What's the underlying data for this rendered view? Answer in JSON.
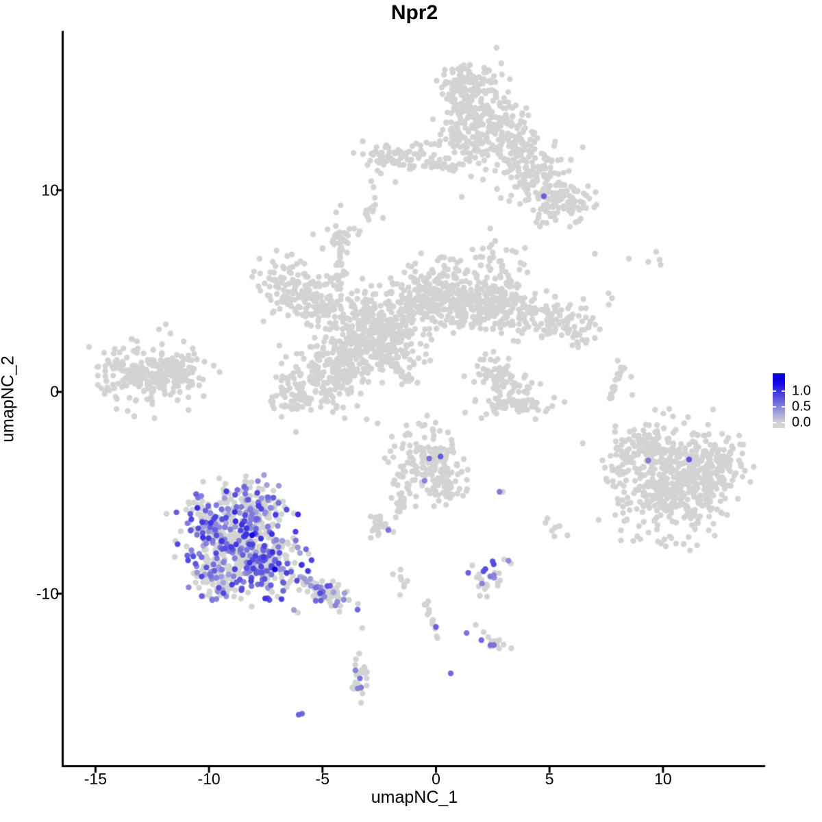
{
  "title": "Npr2",
  "axes": {
    "x": {
      "label": "umapNC_1",
      "tick_labels": [
        "-15",
        "-10",
        "-5",
        "0",
        "5",
        "10"
      ],
      "tick_values": [
        -15,
        -10,
        -5,
        0,
        5,
        10
      ],
      "range": [
        -16.4,
        14.5
      ]
    },
    "y": {
      "label": "umapNC_2",
      "tick_labels": [
        "10",
        "0",
        "-10"
      ],
      "tick_values": [
        10,
        0,
        -10
      ],
      "range": [
        -18.5,
        17.9
      ]
    }
  },
  "legend": {
    "tick_labels": [
      "1.0",
      "0.5",
      "0.0"
    ],
    "tick_values": [
      1.0,
      0.5,
      0.0
    ],
    "bar_value_range": [
      -0.18,
      1.57
    ],
    "low_color": "#d3d3d3",
    "high_color": "#0d00e6"
  },
  "colors": {
    "point_grey": "#d3d3d3",
    "background": "#ffffff",
    "axis": "#000000",
    "text": "#000000"
  },
  "chart_data": {
    "type": "scatter",
    "title": "Npr2",
    "xlabel": "umapNC_1",
    "ylabel": "umapNC_2",
    "xlim": [
      -16.4,
      14.5
    ],
    "ylim": [
      -18.5,
      17.9
    ],
    "grid": false,
    "legend_position": "right",
    "seed": 42,
    "point_radius_px": 4.2,
    "value_max": 1.3,
    "clusters": [
      {
        "id": "top-main",
        "cx": 1.7,
        "cy": 13.6,
        "sx": 0.85,
        "sy": 1.2,
        "n": 260
      },
      {
        "id": "top-tip",
        "cx": 1.2,
        "cy": 15.3,
        "sx": 0.55,
        "sy": 0.45,
        "n": 60
      },
      {
        "id": "top-right-upper",
        "cx": 3.3,
        "cy": 12.4,
        "sx": 0.55,
        "sy": 0.8,
        "n": 80
      },
      {
        "id": "top-wing-mid",
        "cx": 4.3,
        "cy": 10.8,
        "sx": 0.8,
        "sy": 0.8,
        "n": 130
      },
      {
        "id": "top-wing-low",
        "cx": 5.5,
        "cy": 9.4,
        "sx": 0.7,
        "sy": 0.55,
        "n": 90
      },
      {
        "id": "top-left-band",
        "cx": -1.7,
        "cy": 11.6,
        "sx": 0.85,
        "sy": 0.38,
        "n": 85
      },
      {
        "id": "top-band-chain",
        "shape": "streak",
        "x1": -0.6,
        "y1": 11.3,
        "x2": 0.9,
        "y2": 11.2,
        "jitter": 0.12,
        "n": 22
      },
      {
        "id": "top-small-blob",
        "cx": -2.8,
        "cy": 8.8,
        "sx": 0.22,
        "sy": 0.35,
        "n": 12
      },
      {
        "id": "arm-upper",
        "cx": 2.6,
        "cy": 5.6,
        "sx": 0.7,
        "sy": 0.95,
        "n": 90
      },
      {
        "id": "arm-lower",
        "cx": 2.0,
        "cy": 4.4,
        "sx": 0.5,
        "sy": 0.5,
        "n": 60
      },
      {
        "id": "nw-arm",
        "cx": -6.3,
        "cy": 5.3,
        "sx": 0.85,
        "sy": 0.65,
        "n": 110
      },
      {
        "id": "nw-arm-low",
        "cx": -5.1,
        "cy": 4.2,
        "sx": 0.6,
        "sy": 0.5,
        "n": 70
      },
      {
        "id": "chain-vert",
        "shape": "streak",
        "x1": -4.35,
        "y1": 7.3,
        "x2": -4.15,
        "y2": 5.3,
        "jitter": 0.12,
        "n": 20
      },
      {
        "id": "chain-top-blob",
        "cx": -4.3,
        "cy": 7.6,
        "sx": 0.45,
        "sy": 0.4,
        "n": 35
      },
      {
        "id": "center-west",
        "cx": -3.2,
        "cy": 3.4,
        "sx": 0.75,
        "sy": 0.8,
        "n": 160
      },
      {
        "id": "center-core",
        "cx": -1.8,
        "cy": 2.8,
        "sx": 0.8,
        "sy": 0.85,
        "n": 180
      },
      {
        "id": "north-arm",
        "cx": -0.8,
        "cy": 4.6,
        "sx": 0.6,
        "sy": 0.75,
        "n": 110
      },
      {
        "id": "north-arm-up",
        "cx": 0.3,
        "cy": 5.3,
        "sx": 0.55,
        "sy": 0.6,
        "n": 80
      },
      {
        "id": "east-arm-in",
        "cx": 1.3,
        "cy": 4.2,
        "sx": 0.75,
        "sy": 0.6,
        "n": 110
      },
      {
        "id": "east-arm-out",
        "cx": 3.9,
        "cy": 3.9,
        "sx": 0.9,
        "sy": 0.55,
        "n": 110
      },
      {
        "id": "east-arm-tip",
        "cx": 5.9,
        "cy": 3.3,
        "sx": 0.6,
        "sy": 0.5,
        "n": 60
      },
      {
        "id": "sw-lobe",
        "cx": -5.0,
        "cy": 0.6,
        "sx": 0.9,
        "sy": 0.85,
        "n": 180
      },
      {
        "id": "west-conn",
        "cx": -3.9,
        "cy": 1.8,
        "sx": 0.6,
        "sy": 0.6,
        "n": 90
      },
      {
        "id": "diag-streak",
        "shape": "streak",
        "x1": -2.55,
        "y1": 2.05,
        "x2": -1.15,
        "y2": 0.55,
        "jitter": 0.07,
        "n": 55
      },
      {
        "id": "sw-tip",
        "cx": -6.6,
        "cy": -0.4,
        "sx": 0.4,
        "sy": 0.4,
        "n": 30
      },
      {
        "id": "left-main",
        "cx": -12.7,
        "cy": 0.95,
        "sx": 1.05,
        "sy": 0.7,
        "n": 240
      },
      {
        "id": "left-tip",
        "cx": -11.4,
        "cy": 1.1,
        "sx": 0.5,
        "sy": 0.35,
        "n": 40
      },
      {
        "id": "mid-u-bottom",
        "cx": 3.2,
        "cy": -0.55,
        "sx": 0.8,
        "sy": 0.3,
        "n": 70
      },
      {
        "id": "mid-u-left",
        "cx": 2.6,
        "cy": 0.9,
        "sx": 0.45,
        "sy": 0.55,
        "n": 45
      },
      {
        "id": "mid-u-right",
        "cx": 3.6,
        "cy": 0.3,
        "sx": 0.6,
        "sy": 0.5,
        "n": 25
      },
      {
        "id": "streak-right-a",
        "shape": "streak",
        "x1": 8.25,
        "y1": 1.3,
        "x2": 7.85,
        "y2": 0.4,
        "jitter": 0.05,
        "n": 14
      },
      {
        "id": "streak-right-b",
        "shape": "streak",
        "x1": 7.85,
        "y1": 0.4,
        "x2": 7.72,
        "y2": -0.35,
        "jitter": 0.05,
        "n": 12
      },
      {
        "id": "centerbottom-main",
        "cx": -0.45,
        "cy": -3.3,
        "sx": 0.7,
        "sy": 0.8,
        "n": 150
      },
      {
        "id": "centerbottom-ext",
        "cx": 0.35,
        "cy": -4.8,
        "sx": 0.5,
        "sy": 0.45,
        "n": 45
      },
      {
        "id": "centerbottom-tail",
        "shape": "streak",
        "x1": -1.25,
        "y1": -4.6,
        "x2": -1.7,
        "y2": -6.1,
        "jitter": 0.1,
        "n": 16
      },
      {
        "id": "right-main",
        "cx": 10.6,
        "cy": -4.5,
        "sx": 1.25,
        "sy": 1.25,
        "n": 480
      },
      {
        "id": "right-topleft",
        "cx": 9.3,
        "cy": -2.6,
        "sx": 0.55,
        "sy": 0.5,
        "n": 60
      },
      {
        "id": "right-left-prot",
        "cx": 8.2,
        "cy": -3.1,
        "sx": 0.35,
        "sy": 0.55,
        "n": 30
      },
      {
        "id": "right-topright",
        "cx": 12.6,
        "cy": -3.4,
        "sx": 0.6,
        "sy": 0.6,
        "n": 70
      },
      {
        "id": "expr-main",
        "cx": -8.7,
        "cy": -7.3,
        "sx": 1.1,
        "sy": 1.1,
        "n": 380,
        "expr_frac": 0.45,
        "expr_lo": 0.3,
        "expr_hi": 1.05
      },
      {
        "id": "expr-east",
        "cx": -7.3,
        "cy": -8.8,
        "sx": 0.75,
        "sy": 0.7,
        "n": 130,
        "expr_frac": 0.45,
        "expr_lo": 0.3,
        "expr_hi": 1.0
      },
      {
        "id": "expr-sw",
        "cx": -9.5,
        "cy": -9.3,
        "sx": 0.6,
        "sy": 0.6,
        "n": 80,
        "expr_frac": 0.4,
        "expr_lo": 0.3,
        "expr_hi": 0.9
      },
      {
        "id": "expr-west",
        "cx": -10.2,
        "cy": -6.4,
        "sx": 0.45,
        "sy": 0.7,
        "n": 60,
        "expr_frac": 0.4,
        "expr_lo": 0.3,
        "expr_hi": 0.9
      },
      {
        "id": "expr-north",
        "cx": -7.9,
        "cy": -5.5,
        "sx": 0.6,
        "sy": 0.5,
        "n": 70,
        "expr_frac": 0.35,
        "expr_lo": 0.3,
        "expr_hi": 0.95
      },
      {
        "id": "expr-tail",
        "shape": "streak",
        "x1": -5.8,
        "y1": -9.4,
        "x2": -3.9,
        "y2": -10.5,
        "jitter": 0.22,
        "n": 50,
        "expr_frac": 0.35,
        "expr_lo": 0.3,
        "expr_hi": 0.9
      },
      {
        "id": "expr-tail-blob",
        "cx": -4.9,
        "cy": -9.9,
        "sx": 0.5,
        "sy": 0.4,
        "n": 40,
        "expr_frac": 0.3,
        "expr_lo": 0.3,
        "expr_hi": 0.85
      },
      {
        "id": "small-i",
        "cx": -2.45,
        "cy": -6.5,
        "sx": 0.4,
        "sy": 0.35,
        "n": 28
      },
      {
        "id": "small-j",
        "cx": 2.4,
        "cy": -9.2,
        "sx": 0.5,
        "sy": 0.45,
        "n": 26,
        "expr_frac": 0.55,
        "expr_lo": 0.4,
        "expr_hi": 0.85
      },
      {
        "id": "bottom-left-stub",
        "cx": -1.55,
        "cy": -9.3,
        "sx": 0.18,
        "sy": 0.35,
        "n": 8
      },
      {
        "id": "bottom-chain",
        "shape": "streak",
        "x1": -0.5,
        "y1": -10.35,
        "x2": 0.1,
        "y2": -12.2,
        "jitter": 0.1,
        "n": 13
      },
      {
        "id": "bottom-clump",
        "cx": 2.6,
        "cy": -12.4,
        "sx": 0.3,
        "sy": 0.3,
        "n": 12
      },
      {
        "id": "bottom-vert",
        "cx": -3.4,
        "cy": -14.3,
        "sx": 0.25,
        "sy": 0.55,
        "n": 22
      },
      {
        "id": "pair-blob",
        "cx": 5.2,
        "cy": -6.8,
        "sx": 0.25,
        "sy": 0.3,
        "n": 7
      }
    ],
    "singles_grey": [
      [
        -2.85,
        10.45
      ],
      [
        -2.75,
        10.15
      ],
      [
        7.0,
        6.85
      ],
      [
        8.5,
        6.6
      ],
      [
        9.35,
        6.45
      ],
      [
        9.7,
        6.95
      ],
      [
        9.85,
        6.55
      ],
      [
        9.9,
        6.3
      ],
      [
        7.6,
        4.9
      ],
      [
        7.75,
        4.65
      ],
      [
        -8.1,
        5.7
      ],
      [
        -7.6,
        3.5
      ],
      [
        -6.9,
        2.3
      ],
      [
        -4.4,
        8.9
      ],
      [
        -4.2,
        9.25
      ],
      [
        -14.9,
        0.35
      ],
      [
        -14.6,
        -0.1
      ],
      [
        -14.2,
        1.9
      ],
      [
        -12.2,
        3.1
      ],
      [
        -11.9,
        3.35
      ],
      [
        -11.7,
        2.9
      ],
      [
        -10.9,
        -0.9
      ],
      [
        -12.4,
        -1.3
      ],
      [
        -13.3,
        -1.2
      ],
      [
        2.1,
        1.6
      ],
      [
        4.6,
        0.4
      ],
      [
        4.5,
        -0.9
      ],
      [
        2.0,
        -1.3
      ],
      [
        8.6,
        0.75
      ],
      [
        8.65,
        -0.15
      ],
      [
        8.0,
        1.55
      ],
      [
        2.95,
        -4.95
      ],
      [
        7.9,
        -1.7
      ],
      [
        8.0,
        -5.3
      ],
      [
        8.3,
        -6.4
      ],
      [
        13.4,
        -2.6
      ],
      [
        13.5,
        -4.2
      ],
      [
        13.3,
        -5.3
      ],
      [
        9.0,
        -7.3
      ],
      [
        11.5,
        -7.6
      ],
      [
        7.5,
        -4.3
      ],
      [
        3.0,
        -8.3
      ],
      [
        3.3,
        -8.5
      ],
      [
        1.6,
        -8.6
      ],
      [
        1.75,
        -11.55
      ],
      [
        2.1,
        -11.9
      ],
      [
        -3.25,
        -11.7
      ],
      [
        -1.55,
        -5.35
      ],
      [
        -1.4,
        -5.7
      ]
    ],
    "points_expressing": [
      [
        4.75,
        9.7,
        0.7
      ],
      [
        -0.3,
        -3.3,
        0.6
      ],
      [
        0.2,
        -3.2,
        0.75
      ],
      [
        -0.5,
        -4.4,
        0.5
      ],
      [
        2.8,
        -4.95,
        0.55
      ],
      [
        9.35,
        -3.4,
        0.55
      ],
      [
        11.15,
        -3.35,
        0.8
      ],
      [
        -8.1,
        -7.1,
        1.25
      ],
      [
        -7.1,
        -8.8,
        1.3
      ],
      [
        -8.85,
        -5.1,
        0.8
      ],
      [
        -8.4,
        -5.05,
        0.6
      ],
      [
        -2.1,
        -6.85,
        0.6
      ],
      [
        0.0,
        -11.65,
        0.7
      ],
      [
        1.35,
        -11.95,
        0.6
      ],
      [
        2.0,
        -12.3,
        0.65
      ],
      [
        2.4,
        -12.55,
        0.6
      ],
      [
        2.55,
        -12.55,
        0.6
      ],
      [
        -3.55,
        -13.8,
        0.5
      ],
      [
        -3.35,
        -14.2,
        0.6
      ],
      [
        -3.3,
        -14.65,
        0.55
      ],
      [
        -3.45,
        -14.7,
        0.5
      ],
      [
        0.65,
        -13.95,
        0.65
      ],
      [
        -6.05,
        -16.0,
        0.7
      ],
      [
        -5.9,
        -15.95,
        0.65
      ]
    ]
  }
}
